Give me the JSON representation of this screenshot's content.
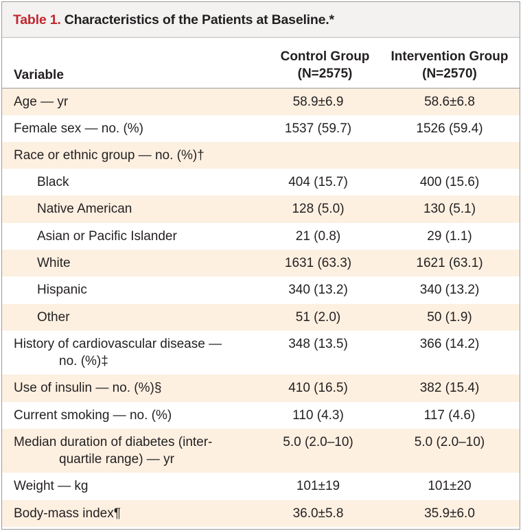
{
  "table": {
    "title_number": "Table 1.",
    "title_text": "Characteristics of the Patients at Baseline.*",
    "header": {
      "variable": "Variable",
      "control_line1": "Control Group",
      "control_line2": "(N=2575)",
      "intervention_line1": "Intervention Group",
      "intervention_line2": "(N=2570)"
    },
    "rows": [
      {
        "label": "Age — yr",
        "cont": "",
        "control": "58.9±6.9",
        "intervention": "58.6±6.8"
      },
      {
        "label": "Female sex — no. (%)",
        "cont": "",
        "control": "1537 (59.7)",
        "intervention": "1526 (59.4)"
      },
      {
        "label": "Race or ethnic group — no. (%)†",
        "cont": "",
        "control": "",
        "intervention": ""
      },
      {
        "label": "Black",
        "cont": "",
        "control": "404 (15.7)",
        "intervention": "400 (15.6)"
      },
      {
        "label": "Native American",
        "cont": "",
        "control": "128 (5.0)",
        "intervention": "130 (5.1)"
      },
      {
        "label": "Asian or Pacific Islander",
        "cont": "",
        "control": "21 (0.8)",
        "intervention": "29 (1.1)"
      },
      {
        "label": "White",
        "cont": "",
        "control": "1631 (63.3)",
        "intervention": "1621 (63.1)"
      },
      {
        "label": "Hispanic",
        "cont": "",
        "control": "340 (13.2)",
        "intervention": "340 (13.2)"
      },
      {
        "label": "Other",
        "cont": "",
        "control": "51 (2.0)",
        "intervention": "50 (1.9)"
      },
      {
        "label": "History of cardiovascular disease —",
        "cont": "no. (%)‡",
        "control": "348 (13.5)",
        "intervention": "366 (14.2)"
      },
      {
        "label": "Use of insulin — no. (%)§",
        "cont": "",
        "control": "410 (16.5)",
        "intervention": "382 (15.4)"
      },
      {
        "label": "Current smoking — no. (%)",
        "cont": "",
        "control": "110 (4.3)",
        "intervention": "117 (4.6)"
      },
      {
        "label": "Median duration of diabetes (inter-",
        "cont": "quartile range) — yr",
        "control": "5.0 (2.0–10)",
        "intervention": "5.0 (2.0–10)"
      },
      {
        "label": "Weight — kg",
        "cont": "",
        "control": "101±19",
        "intervention": "101±20"
      },
      {
        "label": "Body-mass index¶",
        "cont": "",
        "control": "36.0±5.8",
        "intervention": "35.9±6.0"
      }
    ]
  },
  "colors": {
    "title_number": "#c1272d",
    "title_bar": "#f3f2f1",
    "row_shade": "#fdf0e1",
    "border": "#9a9a9a"
  }
}
